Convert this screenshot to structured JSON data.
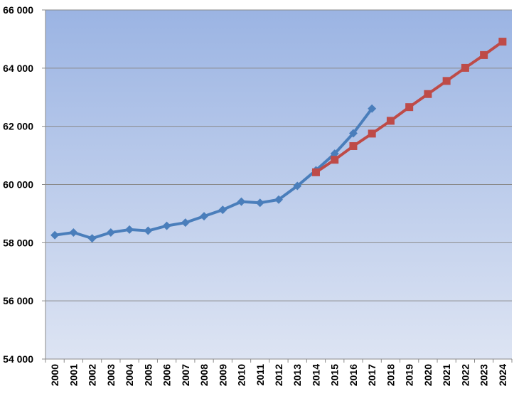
{
  "chart_data": {
    "type": "line",
    "title": "",
    "xlabel": "",
    "ylabel": "",
    "categories": [
      "2000",
      "2001",
      "2002",
      "2003",
      "2004",
      "2005",
      "2006",
      "2007",
      "2008",
      "2009",
      "2010",
      "2011",
      "2012",
      "2013",
      "2014",
      "2015",
      "2016",
      "2017",
      "2018",
      "2019",
      "2020",
      "2021",
      "2022",
      "2023",
      "2024"
    ],
    "yticks": [
      "54 000",
      "56 000",
      "58 000",
      "60 000",
      "62 000",
      "64 000",
      "66 000"
    ],
    "ylim": [
      54000,
      66000
    ],
    "grid": true,
    "legend": "none",
    "series": [
      {
        "color": "#4a7ebb",
        "marker": "diamond",
        "values": [
          58260,
          58350,
          58150,
          58350,
          58450,
          58410,
          58580,
          58690,
          58910,
          59130,
          59410,
          59370,
          59480,
          59950,
          60490,
          61060,
          61760,
          62610,
          null,
          null,
          null,
          null,
          null,
          null,
          null
        ]
      },
      {
        "color": "#be4b48",
        "marker": "square",
        "values": [
          null,
          null,
          null,
          null,
          null,
          null,
          null,
          null,
          null,
          null,
          null,
          null,
          null,
          null,
          60420,
          60850,
          61320,
          61750,
          62190,
          62660,
          63110,
          63560,
          64010,
          64450,
          64910
        ]
      }
    ]
  }
}
